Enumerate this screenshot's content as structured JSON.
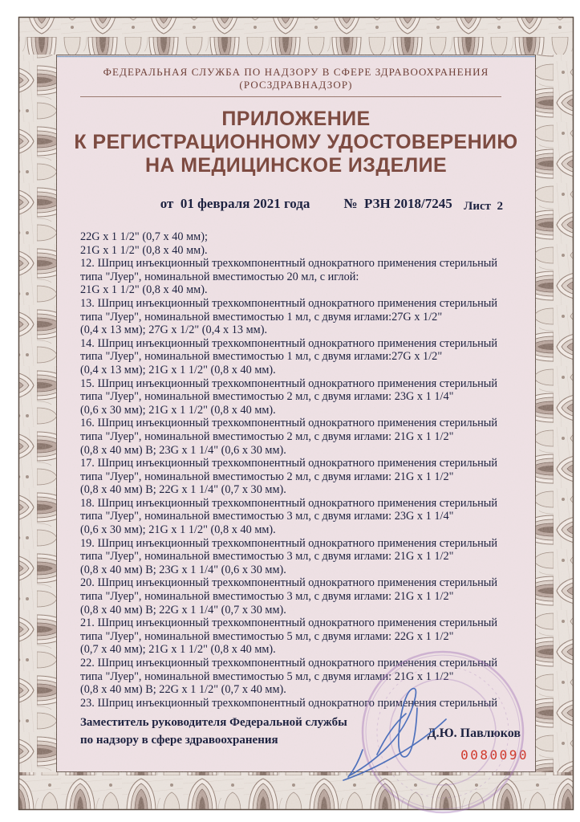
{
  "document": {
    "agency_line1": "ФЕДЕРАЛЬНАЯ СЛУЖБА ПО НАДЗОРУ В СФЕРЕ ЗДРАВООХРАНЕНИЯ",
    "agency_line2": "(РОСЗДРАВНАДЗОР)",
    "title_line1": "ПРИЛОЖЕНИЕ",
    "title_line2": "К РЕГИСТРАЦИОННОМУ УДОСТОВЕРЕНИЮ",
    "title_line3": "НА МЕДИЦИНСКОЕ ИЗДЕЛИЕ",
    "date_label": "от  01 февраля 2021 года",
    "number_label": "№  РЗН 2018/7245",
    "sheet_label": "Лист  2",
    "body_lines": [
      "22G x 1 1/2\" (0,7 x 40 мм);",
      "21G x 1 1/2\" (0,8 x 40 мм).",
      "12. Шприц инъекционный трехкомпонентный однократного применения стерильный",
      "типа \"Луер\", номинальной вместимостью 20 мл, с иглой:",
      "21G x 1 1/2\" (0,8 x 40 мм).",
      "13. Шприц инъекционный трехкомпонентный однократного применения стерильный",
      "типа \"Луер\", номинальной вместимостью 1 мл, с двумя иглами:27G x 1/2\"",
      "(0,4 x 13 мм); 27G x 1/2\" (0,4 x 13 мм).",
      "14. Шприц инъекционный трехкомпонентный однократного применения стерильный",
      "типа \"Луер\", номинальной вместимостью 1 мл, с двумя иглами:27G x 1/2\"",
      "(0,4 x 13 мм); 21G x 1 1/2\" (0,8 x 40 мм).",
      "15. Шприц инъекционный трехкомпонентный однократного применения стерильный",
      "типа \"Луер\", номинальной вместимостью 2 мл, с двумя иглами: 23G x 1 1/4\"",
      "(0,6 x 30 мм); 21G x 1 1/2\" (0,8 x 40 мм).",
      "16. Шприц инъекционный трехкомпонентный однократного применения стерильный",
      "типа \"Луер\", номинальной вместимостью 2 мл, с двумя иглами: 21G x 1 1/2\"",
      "(0,8 x 40 мм) В; 23G x 1 1/4\" (0,6 x 30 мм).",
      "17. Шприц инъекционный трехкомпонентный однократного применения стерильный",
      "типа \"Луер\", номинальной вместимостью 2 мл, с двумя иглами: 21G x 1 1/2\"",
      "(0,8 x 40 мм) В; 22G x 1 1/4\" (0,7 x 30 мм).",
      "18. Шприц инъекционный трехкомпонентный однократного применения стерильный",
      "типа \"Луер\", номинальной вместимостью 3 мл, с двумя иглами: 23G x 1 1/4\"",
      "(0,6 x 30 мм); 21G x 1 1/2\" (0,8 x 40 мм).",
      "19. Шприц инъекционный трехкомпонентный однократного применения стерильный",
      "типа \"Луер\", номинальной вместимостью 3 мл, с двумя иглами: 21G x 1 1/2\"",
      "(0,8 x 40 мм) В; 23G x 1 1/4\" (0,6 x 30 мм).",
      "20. Шприц инъекционный трехкомпонентный однократного применения стерильный",
      "типа \"Луер\", номинальной вместимостью 3 мл, с двумя иглами: 21G x 1 1/2\"",
      "(0,8 x 40 мм) В; 22G x 1 1/4\" (0,7 x 30 мм).",
      "21. Шприц инъекционный трехкомпонентный однократного применения стерильный",
      "типа \"Луер\", номинальной вместимостью 5 мл, с двумя иглами: 22G x 1 1/2\"",
      "(0,7 x 40 мм); 21G x 1 1/2\" (0,8 x 40 мм).",
      "22. Шприц инъекционный трехкомпонентный однократного применения стерильный",
      "типа \"Луер\", номинальной вместимостью 5 мл, с двумя иглами: 21G x 1 1/2\"",
      "(0,8 x 40 мм) В; 22G x 1 1/2\" (0,7 x 40 мм).",
      "23. Шприц инъекционный трехкомпонентный однократного применения стерильный"
    ],
    "signer": {
      "position_line1": "Заместитель руководителя Федеральной службы",
      "position_line2": "по надзору в сфере здравоохранения",
      "name": "Д.Ю. Павлюков"
    },
    "serial_number": "0080090",
    "colors": {
      "agency_text": "#6f4038",
      "title_text": "#7d4b41",
      "body_text": "#1d2240",
      "serial_number": "#d0392c",
      "signature_ink": "#3f66b8",
      "stamp_ink": "#9d6fb5",
      "paper_tint": "#ecdfe2",
      "border_ornament": "#8d7a6e"
    }
  }
}
